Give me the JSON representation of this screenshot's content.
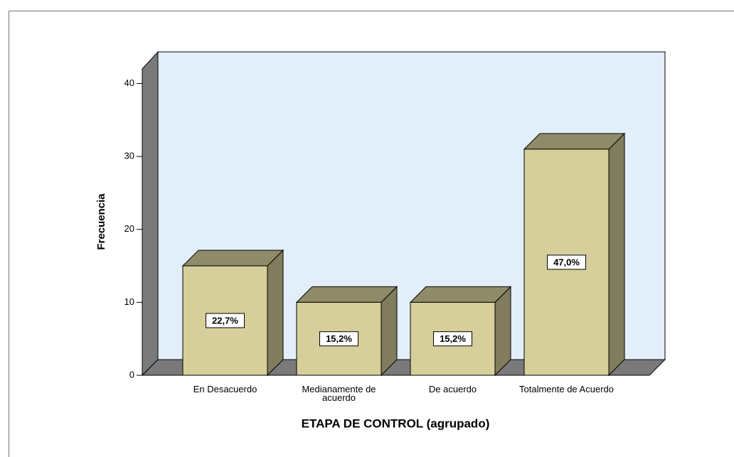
{
  "chart_data": {
    "type": "bar3d",
    "x_label": "ETAPA DE CONTROL (agrupado)",
    "y_label": "Frecuencia",
    "categories": [
      "En Desacuerdo",
      "Medianamente de acuerdo",
      "De acuerdo",
      "Totalmente de Acuerdo"
    ],
    "values": [
      15,
      10,
      10,
      31
    ],
    "percents": [
      22.7,
      15.2,
      15.2,
      47.0
    ],
    "percent_labels": [
      "22,7%",
      "15,2%",
      "15,2%",
      "47,0%"
    ],
    "color": "#d6cf9b",
    "ylim": [
      0,
      42
    ],
    "yticks": [
      0,
      10,
      20,
      30,
      40
    ]
  }
}
